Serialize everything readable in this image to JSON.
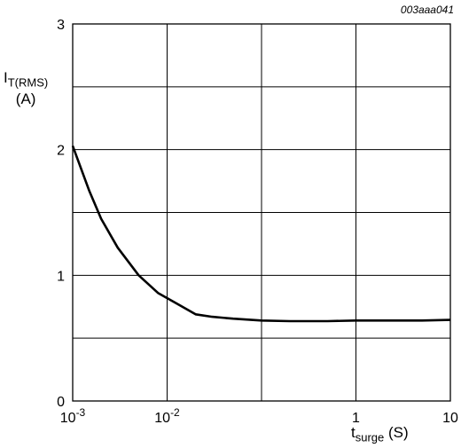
{
  "figure_id": "003aaa041",
  "chart_data": {
    "type": "line",
    "xscale": "log",
    "xlim": [
      0.001,
      10
    ],
    "ylim": [
      0,
      3
    ],
    "grid": true,
    "ylabel": {
      "main": "I",
      "sub": "T(RMS)",
      "unit": "(A)"
    },
    "xlabel": {
      "main": "t",
      "sub": "surge",
      "unit": "(S)"
    },
    "x_ticks": [
      {
        "value": 0.001,
        "base": "10",
        "exp": "-3"
      },
      {
        "value": 0.01,
        "base": "10",
        "exp": "-2"
      },
      {
        "value": 1,
        "base": "1",
        "exp": ""
      },
      {
        "value": 10,
        "base": "10",
        "exp": ""
      }
    ],
    "y_ticks": [
      {
        "value": 0,
        "label": "0"
      },
      {
        "value": 1,
        "label": "1"
      },
      {
        "value": 2,
        "label": "2"
      },
      {
        "value": 3,
        "label": "3"
      }
    ],
    "series": [
      {
        "x": [
          0.001,
          0.0015,
          0.002,
          0.003,
          0.005,
          0.008,
          0.013,
          0.02,
          0.03,
          0.05,
          0.1,
          0.2,
          0.5,
          1,
          2,
          5,
          10
        ],
        "y": [
          2.03,
          1.67,
          1.45,
          1.22,
          1.0,
          0.86,
          0.77,
          0.69,
          0.67,
          0.655,
          0.64,
          0.635,
          0.635,
          0.64,
          0.64,
          0.64,
          0.645
        ]
      }
    ]
  }
}
